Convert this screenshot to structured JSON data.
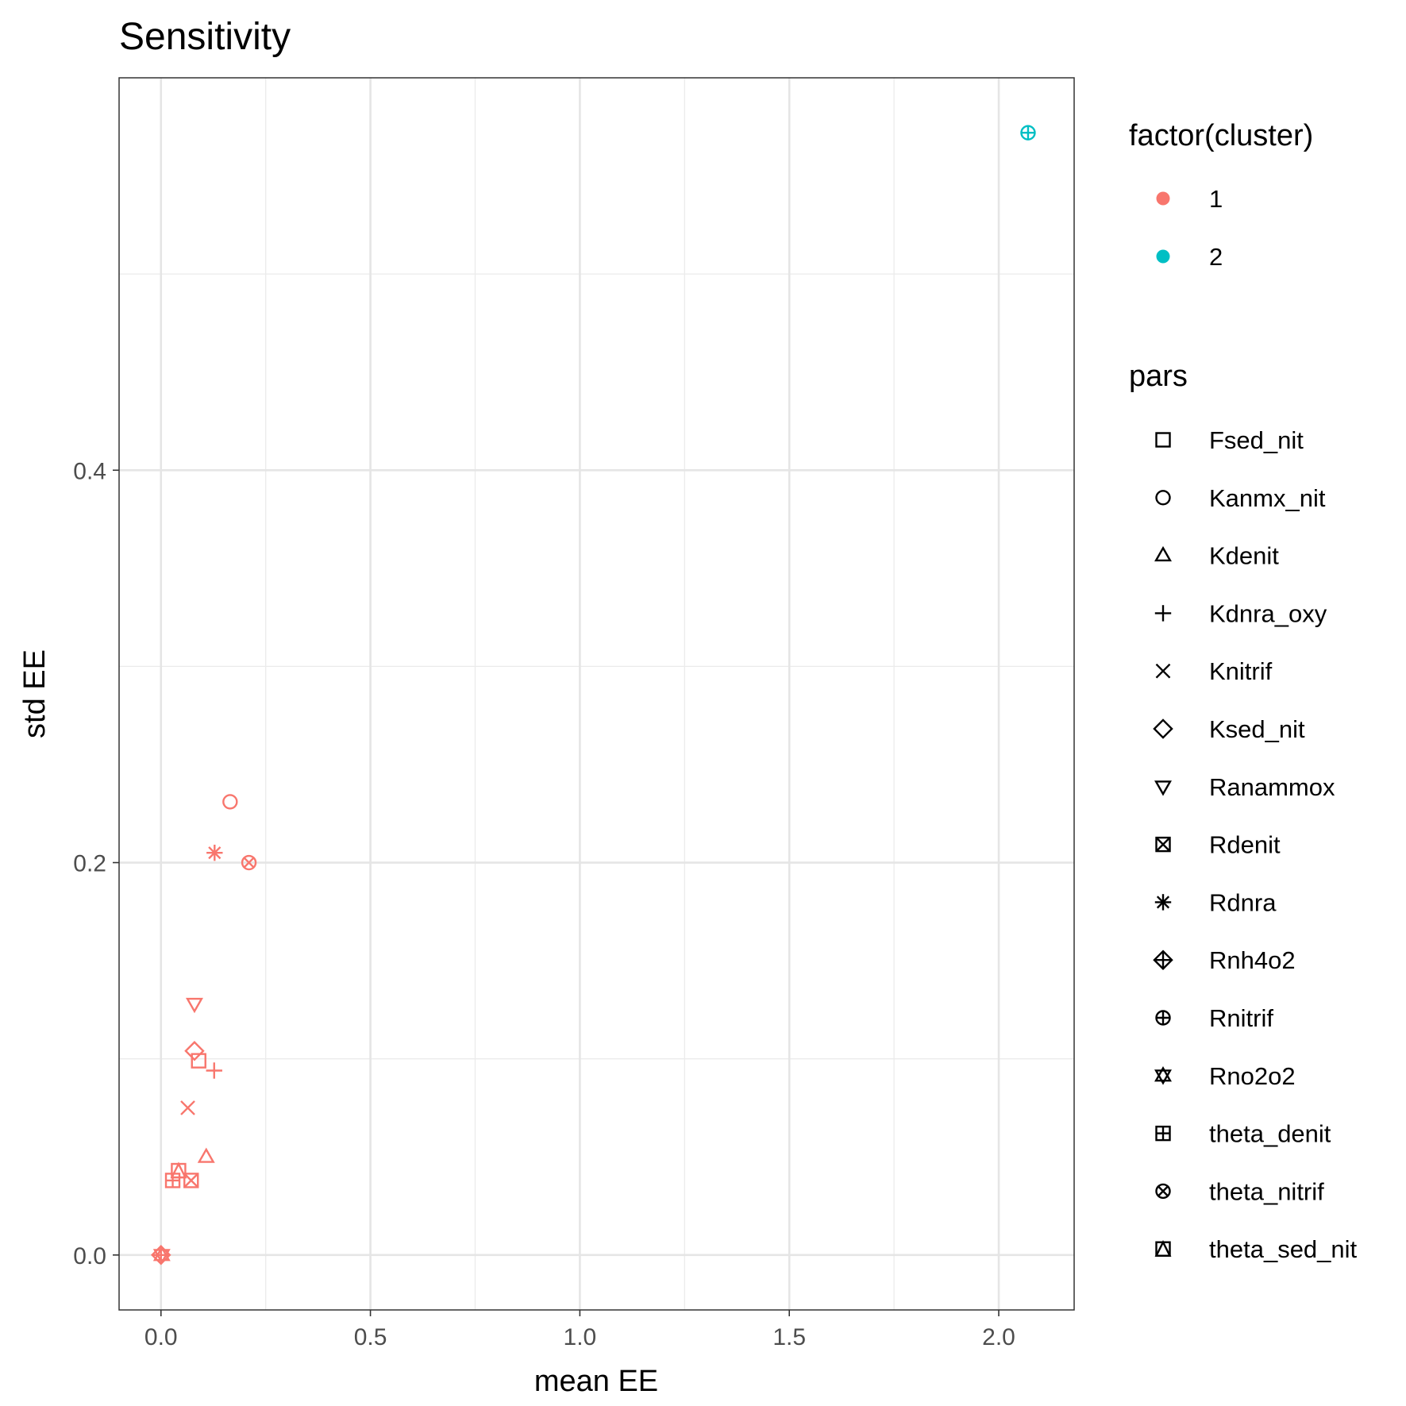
{
  "chart_data": {
    "type": "scatter",
    "title": "Sensitivity",
    "xlabel": "mean EE",
    "ylabel": "std EE",
    "xlim": [
      -0.1,
      2.18
    ],
    "ylim": [
      -0.028,
      0.6
    ],
    "x_ticks": [
      "0.0",
      "0.5",
      "1.0",
      "1.5",
      "2.0"
    ],
    "x_tick_values": [
      0,
      0.5,
      1.0,
      1.5,
      2.0
    ],
    "y_ticks": [
      "0.0",
      "0.2",
      "0.4"
    ],
    "y_tick_values": [
      0,
      0.2,
      0.4
    ],
    "grid": true,
    "colors": {
      "1": "#F8766D",
      "2": "#00BFC4"
    },
    "legend_color": {
      "title": "factor(cluster)",
      "entries": [
        {
          "label": "1",
          "color": "#F8766D"
        },
        {
          "label": "2",
          "color": "#00BFC4"
        }
      ]
    },
    "legend_shape": {
      "title": "pars",
      "entries": [
        {
          "label": "Fsed_nit",
          "shape": "square"
        },
        {
          "label": "Kanmx_nit",
          "shape": "circle"
        },
        {
          "label": "Kdenit",
          "shape": "triangle"
        },
        {
          "label": "Kdnra_oxy",
          "shape": "plus"
        },
        {
          "label": "Knitrif",
          "shape": "cross"
        },
        {
          "label": "Ksed_nit",
          "shape": "diamond"
        },
        {
          "label": "Ranammox",
          "shape": "triangle-down"
        },
        {
          "label": "Rdenit",
          "shape": "square-cross"
        },
        {
          "label": "Rdnra",
          "shape": "asterisk"
        },
        {
          "label": "Rnh4o2",
          "shape": "diamond-plus"
        },
        {
          "label": "Rnitrif",
          "shape": "circle-plus"
        },
        {
          "label": "Rno2o2",
          "shape": "star-david"
        },
        {
          "label": "theta_denit",
          "shape": "square-plus"
        },
        {
          "label": "theta_nitrif",
          "shape": "circle-cross"
        },
        {
          "label": "theta_sed_nit",
          "shape": "square-triangle"
        }
      ]
    },
    "points": [
      {
        "par": "Fsed_nit",
        "x": 0.09,
        "y": 0.099,
        "cluster": "1"
      },
      {
        "par": "Kanmx_nit",
        "x": 0.165,
        "y": 0.231,
        "cluster": "1"
      },
      {
        "par": "Kdenit",
        "x": 0.108,
        "y": 0.05,
        "cluster": "1"
      },
      {
        "par": "Kdnra_oxy",
        "x": 0.127,
        "y": 0.094,
        "cluster": "1"
      },
      {
        "par": "Knitrif",
        "x": 0.064,
        "y": 0.075,
        "cluster": "1"
      },
      {
        "par": "Ksed_nit",
        "x": 0.08,
        "y": 0.104,
        "cluster": "1"
      },
      {
        "par": "Ranammox",
        "x": 0.08,
        "y": 0.128,
        "cluster": "1"
      },
      {
        "par": "Rdenit",
        "x": 0.072,
        "y": 0.038,
        "cluster": "1"
      },
      {
        "par": "Rdnra",
        "x": 0.128,
        "y": 0.205,
        "cluster": "1"
      },
      {
        "par": "Rnh4o2",
        "x": 0.0,
        "y": 0.0,
        "cluster": "1"
      },
      {
        "par": "Rnitrif",
        "x": 2.07,
        "y": 0.572,
        "cluster": "2"
      },
      {
        "par": "Rno2o2",
        "x": 0.002,
        "y": 0.0,
        "cluster": "1"
      },
      {
        "par": "theta_denit",
        "x": 0.028,
        "y": 0.038,
        "cluster": "1"
      },
      {
        "par": "theta_nitrif",
        "x": 0.21,
        "y": 0.2,
        "cluster": "1"
      },
      {
        "par": "theta_sed_nit",
        "x": 0.042,
        "y": 0.043,
        "cluster": "1"
      }
    ]
  }
}
